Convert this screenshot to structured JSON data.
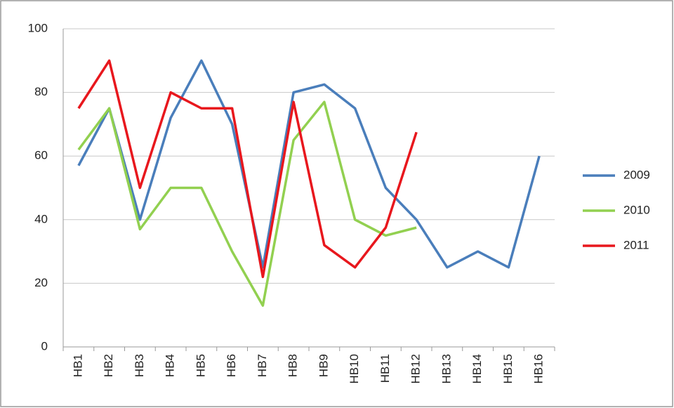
{
  "chart_data": {
    "type": "line",
    "categories": [
      "HB1",
      "HB2",
      "HB3",
      "HB4",
      "HB5",
      "HB6",
      "HB7",
      "HB8",
      "HB9",
      "HB10",
      "HB11",
      "HB12",
      "HB13",
      "HB14",
      "HB15",
      "HB16"
    ],
    "series": [
      {
        "name": "2009",
        "color": "#4a7ebb",
        "values": [
          57,
          75,
          40,
          72,
          90,
          70,
          25,
          80,
          82.5,
          75,
          50,
          40,
          25,
          30,
          25,
          60
        ]
      },
      {
        "name": "2010",
        "color": "#92d050",
        "values": [
          62,
          75,
          37,
          50,
          50,
          30,
          13,
          65,
          77,
          40,
          35,
          37.5,
          null,
          null,
          null,
          null
        ]
      },
      {
        "name": "2011",
        "color": "#e8171d",
        "values": [
          75,
          90,
          50,
          80,
          75,
          75,
          22,
          77,
          32,
          25,
          37.5,
          67.5,
          null,
          null,
          null,
          null
        ]
      }
    ],
    "ylim": [
      0,
      100
    ],
    "yticks": [
      0,
      20,
      40,
      60,
      80,
      100
    ],
    "grid": true,
    "legend": "right"
  }
}
